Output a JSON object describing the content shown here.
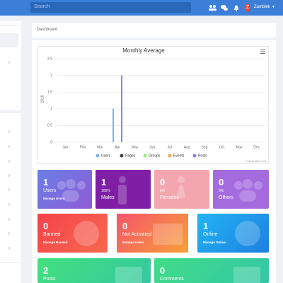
{
  "topbar": {
    "search_placeholder": "Search",
    "user_initial": "Z",
    "user_name": "Zamblek"
  },
  "breadcrumb": "Dashboard",
  "chart_data": {
    "type": "bar",
    "title": "Monthly Average",
    "y_label": "2019",
    "categories": [
      "Jan",
      "Feb",
      "Mar",
      "Apr",
      "May",
      "Jun",
      "Jul",
      "Aug",
      "Sep",
      "Oct",
      "Nov",
      "Dec"
    ],
    "series": [
      {
        "name": "Users",
        "color": "#7cb5ec",
        "values": [
          0,
          0,
          0,
          1,
          0,
          0,
          0,
          0,
          0,
          0,
          0,
          0
        ]
      },
      {
        "name": "Pages",
        "color": "#434348",
        "values": [
          0,
          0,
          0,
          0,
          0,
          0,
          0,
          0,
          0,
          0,
          0,
          0
        ]
      },
      {
        "name": "Groups",
        "color": "#90ed7d",
        "values": [
          0,
          0,
          0,
          0,
          0,
          0,
          0,
          0,
          0,
          0,
          0,
          0
        ]
      },
      {
        "name": "Events",
        "color": "#f7a35c",
        "values": [
          0,
          0,
          0,
          0,
          0,
          0,
          0,
          0,
          0,
          0,
          0,
          0
        ]
      },
      {
        "name": "Posts",
        "color": "#8085e9",
        "values": [
          0,
          0,
          0,
          2,
          0,
          0,
          0,
          0,
          0,
          0,
          0,
          0
        ]
      }
    ],
    "ylim": [
      0,
      2.5
    ],
    "yticks": [
      0,
      0.5,
      1,
      1.5,
      2,
      2.5
    ],
    "grid": true,
    "credits": "Highcharts.com"
  },
  "cards": [
    {
      "value": 1,
      "label": "Users",
      "link": "Manage Users"
    },
    {
      "value": 1,
      "percent": "100%",
      "label": "Males"
    },
    {
      "value": 0,
      "percent": "0%",
      "label": "Females"
    },
    {
      "value": 0,
      "percent": "0%",
      "label": "Others"
    },
    {
      "value": 0,
      "label": "Banned",
      "link": "Manage Banned"
    },
    {
      "value": 0,
      "label": "Not Activated",
      "link": "Manage Users"
    },
    {
      "value": 1,
      "label": "Online",
      "link": "Manage Online"
    },
    {
      "value": 2,
      "label": "Posts"
    },
    {
      "value": 0,
      "label": "Comments"
    }
  ]
}
